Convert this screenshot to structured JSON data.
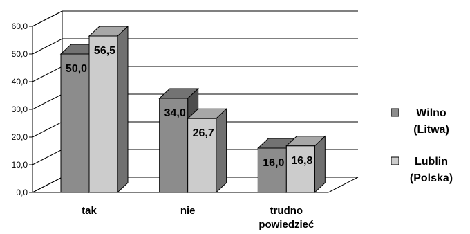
{
  "chart_data": {
    "type": "bar",
    "categories": [
      [
        "tak"
      ],
      [
        "nie"
      ],
      [
        "trudno",
        "powiedzieć"
      ]
    ],
    "series": [
      {
        "name": [
          "Wilno",
          "(Litwa)"
        ],
        "values": [
          50.0,
          34.0,
          16.0
        ],
        "labels": [
          "50,0",
          "34,0",
          "16,0"
        ],
        "color": "#8c8c8c"
      },
      {
        "name": [
          "Lublin",
          "(Polska)"
        ],
        "values": [
          56.5,
          26.7,
          16.8
        ],
        "labels": [
          "56,5",
          "26,7",
          "16,8"
        ],
        "color": "#cccccc"
      }
    ],
    "ylim": [
      0,
      60
    ],
    "yticks": [
      0,
      10,
      20,
      30,
      40,
      50,
      60
    ],
    "ytick_labels": [
      "0,0",
      "10,0",
      "20,0",
      "30,0",
      "40,0",
      "50,0",
      "60,0"
    ],
    "grid": true,
    "legend": "right",
    "three_d": true
  }
}
